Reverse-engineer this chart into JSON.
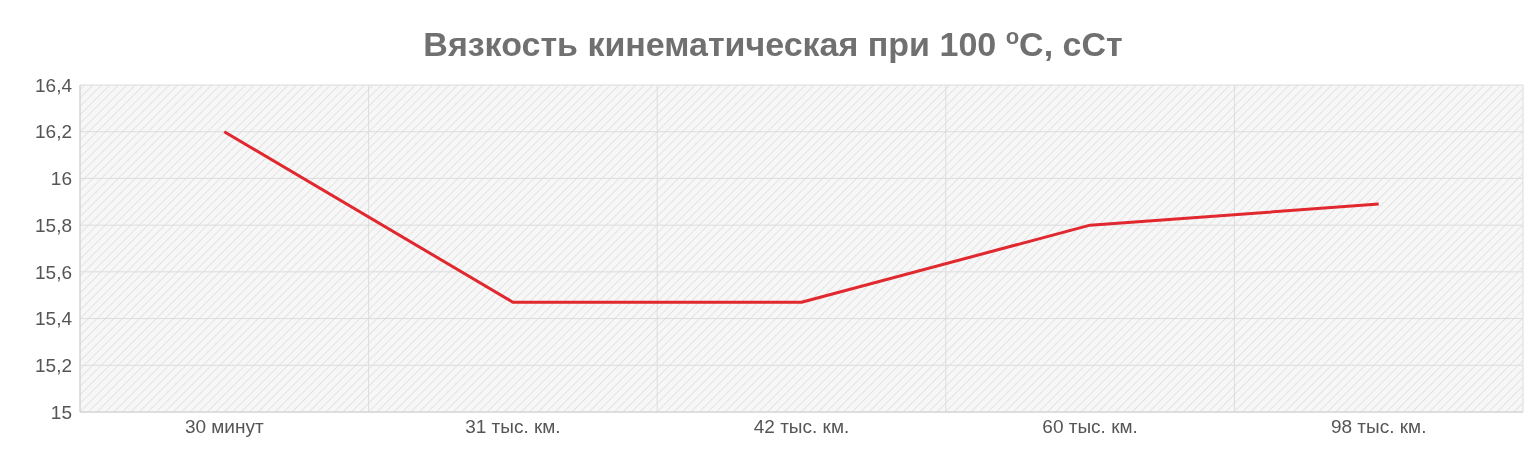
{
  "chart_data": {
    "type": "line",
    "title": "Вязкость кинематическая при 100 $^{o}$C, сСт",
    "categories": [
      "30 минут",
      "31 тыс. км.",
      "42 тыс. км.",
      "60 тыс. км.",
      "98 тыс. км."
    ],
    "series": [
      {
        "color": "#e0282e",
        "values": [
          16.2,
          15.47,
          15.47,
          15.8,
          15.89
        ]
      }
    ],
    "ylim": [
      15,
      16.4
    ],
    "yticks": [
      {
        "value": 15,
        "label": "15"
      },
      {
        "value": 15.2,
        "label": "15,2"
      },
      {
        "value": 15.4,
        "label": "15,4"
      },
      {
        "value": 15.6,
        "label": "15,6"
      },
      {
        "value": 15.8,
        "label": "15,8"
      },
      {
        "value": 16,
        "label": "16"
      },
      {
        "value": 16.2,
        "label": "16,2"
      },
      {
        "value": 16.4,
        "label": "16,4"
      }
    ],
    "grid": true,
    "marker": "none",
    "line_style": "solid"
  }
}
